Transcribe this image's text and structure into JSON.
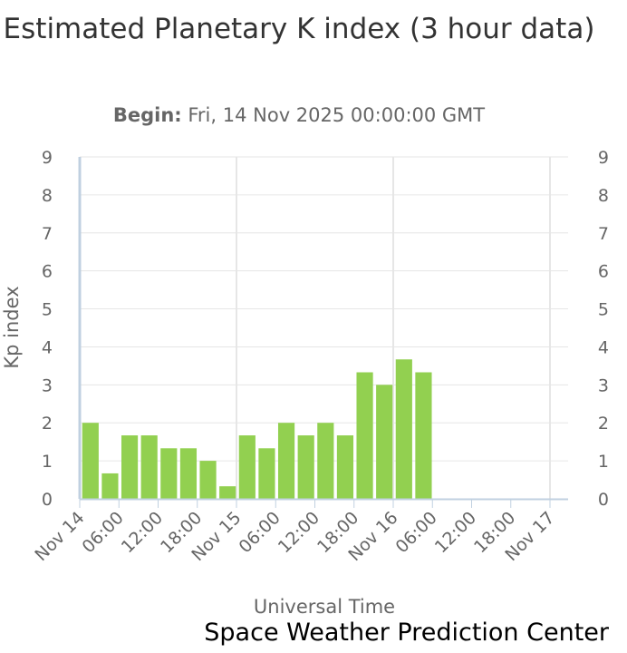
{
  "chart_data": {
    "type": "bar",
    "title": "Estimated Planetary K index (3 hour data)",
    "subtitle_label": "Begin:",
    "subtitle_value": "Fri, 14 Nov 2025 00:00:00 GMT",
    "xlabel": "Universal Time",
    "ylabel": "Kp index",
    "ylim": [
      0,
      9
    ],
    "y_ticks": [
      0,
      1,
      2,
      3,
      4,
      5,
      6,
      7,
      8,
      9
    ],
    "x_range_hours": [
      0,
      72
    ],
    "x_tick_labels": [
      {
        "hour": 0,
        "label": "Nov 14"
      },
      {
        "hour": 6,
        "label": "06:00"
      },
      {
        "hour": 12,
        "label": "12:00"
      },
      {
        "hour": 18,
        "label": "18:00"
      },
      {
        "hour": 24,
        "label": "Nov 15"
      },
      {
        "hour": 30,
        "label": "06:00"
      },
      {
        "hour": 36,
        "label": "12:00"
      },
      {
        "hour": 42,
        "label": "18:00"
      },
      {
        "hour": 48,
        "label": "Nov 16"
      },
      {
        "hour": 54,
        "label": "06:00"
      },
      {
        "hour": 60,
        "label": "12:00"
      },
      {
        "hour": 66,
        "label": "18:00"
      },
      {
        "hour": 72,
        "label": "Nov 17"
      }
    ],
    "bar_interval_hours": 3,
    "values": [
      2,
      0.67,
      1.67,
      1.67,
      1.33,
      1.33,
      1,
      0.33,
      1.67,
      1.33,
      2,
      1.67,
      2,
      1.67,
      3.33,
      3,
      3.67,
      3.33
    ],
    "bar_color": "#92d050",
    "grid": true,
    "legend": "none"
  },
  "credit": "Space Weather Prediction Center"
}
